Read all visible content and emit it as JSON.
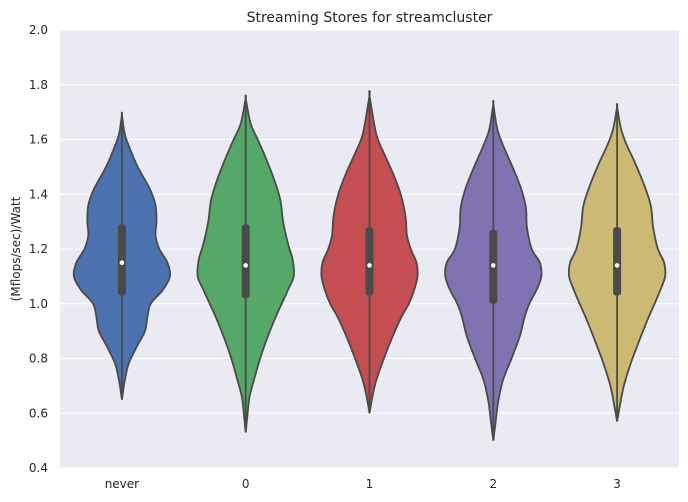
{
  "chart_data": {
    "type": "violin",
    "title": "Streaming Stores for streamcluster",
    "xlabel": "",
    "ylabel": "(Mflops/sec)/Watt",
    "ylim": [
      0.4,
      2.0
    ],
    "yticks": [
      "0.4",
      "0.6",
      "0.8",
      "1.0",
      "1.2",
      "1.4",
      "1.6",
      "1.8",
      "2.0"
    ],
    "grid": true,
    "legend": "none",
    "categories": [
      "never",
      "0",
      "1",
      "2",
      "3"
    ],
    "series": [
      {
        "category": "never",
        "color": "#4C72B0",
        "min": 0.65,
        "q1": 1.03,
        "median": 1.15,
        "q3": 1.29,
        "max": 1.69,
        "density": [
          [
            0.65,
            0.0
          ],
          [
            0.72,
            0.06
          ],
          [
            0.78,
            0.14
          ],
          [
            0.84,
            0.3
          ],
          [
            0.9,
            0.48
          ],
          [
            0.95,
            0.53
          ],
          [
            1.0,
            0.6
          ],
          [
            1.05,
            0.85
          ],
          [
            1.1,
            1.0
          ],
          [
            1.15,
            0.95
          ],
          [
            1.2,
            0.78
          ],
          [
            1.25,
            0.7
          ],
          [
            1.3,
            0.72
          ],
          [
            1.36,
            0.7
          ],
          [
            1.42,
            0.58
          ],
          [
            1.5,
            0.33
          ],
          [
            1.57,
            0.16
          ],
          [
            1.62,
            0.06
          ],
          [
            1.69,
            0.0
          ]
        ]
      },
      {
        "category": "0",
        "color": "#55A868",
        "min": 0.53,
        "q1": 1.02,
        "median": 1.14,
        "q3": 1.29,
        "max": 1.75,
        "density": [
          [
            0.53,
            0.0
          ],
          [
            0.6,
            0.04
          ],
          [
            0.66,
            0.08
          ],
          [
            0.72,
            0.17
          ],
          [
            0.8,
            0.3
          ],
          [
            0.88,
            0.46
          ],
          [
            0.95,
            0.62
          ],
          [
            1.0,
            0.75
          ],
          [
            1.05,
            0.88
          ],
          [
            1.1,
            1.0
          ],
          [
            1.16,
            0.98
          ],
          [
            1.22,
            0.88
          ],
          [
            1.3,
            0.78
          ],
          [
            1.38,
            0.72
          ],
          [
            1.46,
            0.58
          ],
          [
            1.54,
            0.4
          ],
          [
            1.6,
            0.25
          ],
          [
            1.66,
            0.1
          ],
          [
            1.75,
            0.0
          ]
        ]
      },
      {
        "category": "1",
        "color": "#C44E52",
        "min": 0.6,
        "q1": 1.03,
        "median": 1.14,
        "q3": 1.28,
        "max": 1.76,
        "density": [
          [
            0.6,
            0.0
          ],
          [
            0.66,
            0.06
          ],
          [
            0.72,
            0.14
          ],
          [
            0.8,
            0.3
          ],
          [
            0.88,
            0.48
          ],
          [
            0.95,
            0.66
          ],
          [
            1.0,
            0.82
          ],
          [
            1.05,
            0.93
          ],
          [
            1.1,
            1.0
          ],
          [
            1.15,
            0.98
          ],
          [
            1.2,
            0.86
          ],
          [
            1.25,
            0.78
          ],
          [
            1.32,
            0.75
          ],
          [
            1.4,
            0.65
          ],
          [
            1.48,
            0.48
          ],
          [
            1.55,
            0.3
          ],
          [
            1.62,
            0.14
          ],
          [
            1.76,
            0.0
          ]
        ]
      },
      {
        "category": "2",
        "color": "#8172B2",
        "min": 0.5,
        "q1": 1.0,
        "median": 1.14,
        "q3": 1.27,
        "max": 1.73,
        "density": [
          [
            0.5,
            0.0
          ],
          [
            0.57,
            0.05
          ],
          [
            0.64,
            0.1
          ],
          [
            0.72,
            0.2
          ],
          [
            0.8,
            0.38
          ],
          [
            0.88,
            0.55
          ],
          [
            0.95,
            0.65
          ],
          [
            1.0,
            0.75
          ],
          [
            1.05,
            0.9
          ],
          [
            1.1,
            1.0
          ],
          [
            1.15,
            0.97
          ],
          [
            1.2,
            0.8
          ],
          [
            1.28,
            0.7
          ],
          [
            1.35,
            0.68
          ],
          [
            1.42,
            0.58
          ],
          [
            1.5,
            0.4
          ],
          [
            1.58,
            0.2
          ],
          [
            1.64,
            0.08
          ],
          [
            1.73,
            0.0
          ]
        ]
      },
      {
        "category": "3",
        "color": "#CCB974",
        "min": 0.57,
        "q1": 1.03,
        "median": 1.14,
        "q3": 1.28,
        "max": 1.72,
        "density": [
          [
            0.57,
            0.0
          ],
          [
            0.63,
            0.06
          ],
          [
            0.7,
            0.14
          ],
          [
            0.78,
            0.28
          ],
          [
            0.86,
            0.45
          ],
          [
            0.94,
            0.63
          ],
          [
            1.0,
            0.78
          ],
          [
            1.05,
            0.9
          ],
          [
            1.1,
            1.0
          ],
          [
            1.15,
            0.98
          ],
          [
            1.2,
            0.85
          ],
          [
            1.28,
            0.75
          ],
          [
            1.36,
            0.7
          ],
          [
            1.44,
            0.55
          ],
          [
            1.52,
            0.36
          ],
          [
            1.58,
            0.2
          ],
          [
            1.64,
            0.08
          ],
          [
            1.72,
            0.0
          ]
        ]
      }
    ]
  }
}
